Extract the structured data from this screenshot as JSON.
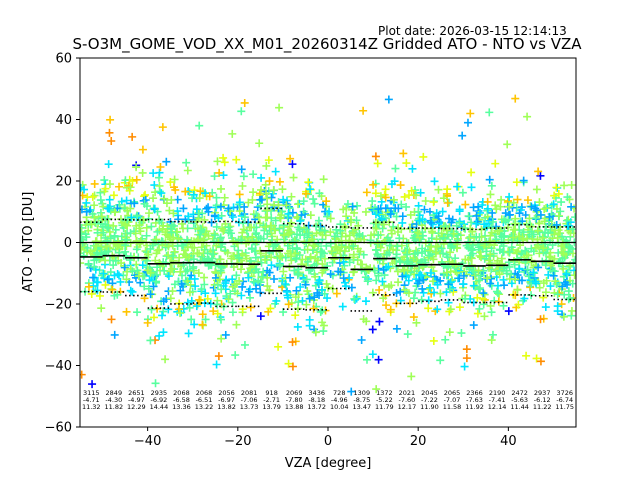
{
  "chart_data": {
    "type": "scatter",
    "plot_date": "Plot date: 2026-03-15 12:14:13",
    "title": "S-O3M_GOME_VOD_XX_M01_20260314Z Gridded ATO - NTO vs VZA",
    "xlabel": "VZA [degree]",
    "ylabel": "ATO - NTO [DU]",
    "xlim": [
      -55,
      55
    ],
    "ylim": [
      -60,
      60
    ],
    "xticks": [
      -40,
      -20,
      0,
      20,
      40
    ],
    "yticks": [
      -60,
      -40,
      -20,
      0,
      20,
      40,
      60
    ],
    "zero_line": 0,
    "bins_x": [
      -52.5,
      -47.5,
      -42.5,
      -37.5,
      -32.5,
      -27.5,
      -22.5,
      -17.5,
      -12.5,
      -7.5,
      -2.5,
      2.5,
      7.5,
      12.5,
      17.5,
      22.5,
      27.5,
      32.5,
      37.5,
      42.5,
      47.5,
      52.5
    ],
    "bin_mean": [
      -4.7,
      -4.3,
      -4.97,
      -6.92,
      -6.58,
      -6.51,
      -6.97,
      -7.06,
      -2.71,
      -7.8,
      -8.18,
      -4.96,
      -8.75,
      -5.22,
      -7.6,
      -7.22,
      -7.07,
      -7.63,
      -7.41,
      -5.63,
      -6.12,
      -6.74
    ],
    "bin_std": [
      11.3,
      11.8,
      12.3,
      14.4,
      13.4,
      13.2,
      13.8,
      13.7,
      13.8,
      13.9,
      13.7,
      10.0,
      13.5,
      11.8,
      12.2,
      11.9,
      11.6,
      11.9,
      12.1,
      11.4,
      11.2,
      11.8
    ],
    "bin_stats_text": {
      "counts": [
        "3115",
        "2849",
        "2651",
        "2935",
        "2068",
        "2068",
        "2056",
        "2081",
        "918",
        "2069",
        "3436",
        "728",
        "1309",
        "1372",
        "2021",
        "2045",
        "2065",
        "2366",
        "2190",
        "2472",
        "2937",
        "3726"
      ],
      "means": [
        "-4.71",
        "-4.30",
        "-4.97",
        "-6.92",
        "-6.58",
        "-6.51",
        "-6.97",
        "-7.06",
        "-2.71",
        "-7.80",
        "-8.18",
        "-4.96",
        "-8.75",
        "-5.22",
        "-7.60",
        "-7.22",
        "-7.07",
        "-7.63",
        "-7.41",
        "-5.63",
        "-6.12",
        "-6.74"
      ],
      "stds": [
        "11.32",
        "11.82",
        "12.29",
        "14.44",
        "13.36",
        "13.22",
        "13.82",
        "13.73",
        "13.79",
        "13.88",
        "13.72",
        "10.04",
        "13.47",
        "11.79",
        "12.17",
        "11.90",
        "11.58",
        "11.92",
        "12.14",
        "11.44",
        "11.22",
        "11.75"
      ]
    },
    "scatter_note": "Dense cloud of '+' markers, approx -40..+45 DU at every VZA, colored by density (jet colormap: blue, cyan, green, yellow, orange)",
    "colors": [
      "#0000ff",
      "#00a6ff",
      "#00e5ff",
      "#57ff9f",
      "#9fff57",
      "#e5ff12",
      "#ffc400",
      "#ff8c00"
    ]
  }
}
